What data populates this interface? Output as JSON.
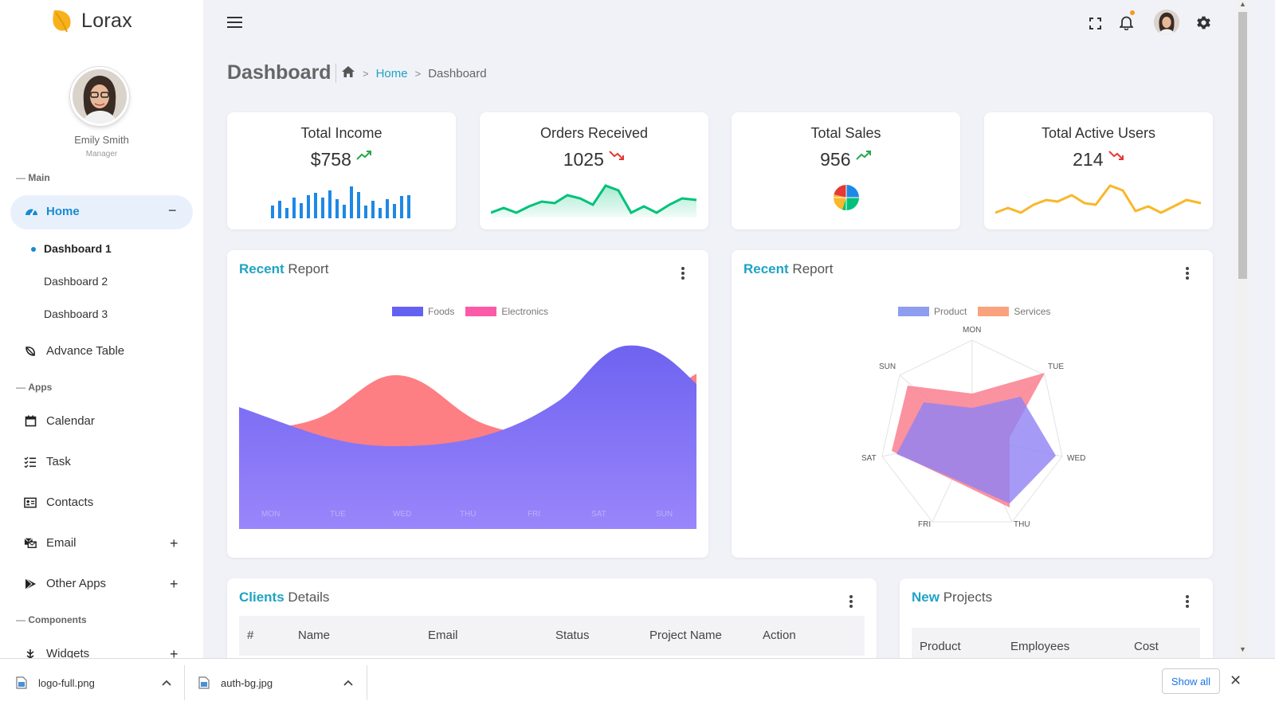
{
  "brand": {
    "name": "Lorax"
  },
  "profile": {
    "name": "Emily Smith",
    "role": "Manager"
  },
  "sidebar": {
    "sections": {
      "main": "Main",
      "apps": "Apps",
      "components": "Components"
    },
    "home": {
      "label": "Home",
      "toggle": "−"
    },
    "sub_items": [
      {
        "label": "Dashboard 1"
      },
      {
        "label": "Dashboard 2"
      },
      {
        "label": "Dashboard 3"
      }
    ],
    "items": [
      {
        "label": "Advance Table",
        "icon": "leaf-icon"
      },
      {
        "label": "Calendar",
        "icon": "calendar-icon"
      },
      {
        "label": "Task",
        "icon": "task-list-icon"
      },
      {
        "label": "Contacts",
        "icon": "contact-card-icon"
      },
      {
        "label": "Email",
        "icon": "email-icon",
        "expand": "+"
      },
      {
        "label": "Other Apps",
        "icon": "play-icon",
        "expand": "+"
      },
      {
        "label": "Widgets",
        "icon": "widget-icon",
        "expand": "+"
      }
    ]
  },
  "header": {
    "title": "Dashboard",
    "breadcrumb": [
      "Home",
      "Dashboard"
    ]
  },
  "stats": [
    {
      "title": "Total Income",
      "value": "$758",
      "trend": "up",
      "color": "#1e88e5",
      "chart": "bars"
    },
    {
      "title": "Orders Received",
      "value": "1025",
      "trend": "down",
      "color": "#00c27a",
      "chart": "area-line"
    },
    {
      "title": "Total Sales",
      "value": "956",
      "trend": "up",
      "chart": "pie"
    },
    {
      "title": "Total Active Users",
      "value": "214",
      "trend": "down",
      "color": "#f9b729",
      "chart": "line"
    }
  ],
  "report_left": {
    "title_accent": "Recent",
    "title_rest": " Report",
    "legend": [
      {
        "name": "Foods",
        "color": "#6461f2"
      },
      {
        "name": "Electronics",
        "color": "#fb5aa9"
      }
    ],
    "days": [
      "MON",
      "TUE",
      "WED",
      "THU",
      "FRI",
      "SAT",
      "SUN"
    ]
  },
  "report_right": {
    "title_accent": "Recent",
    "title_rest": " Report",
    "legend": [
      {
        "name": "Product",
        "color": "#8d9df0"
      },
      {
        "name": "Services",
        "color": "#f9a27c"
      }
    ],
    "axes": [
      "MON",
      "TUE",
      "WED",
      "THU",
      "FRI",
      "SAT",
      "SUN"
    ]
  },
  "clients": {
    "title_accent": "Clients",
    "title_rest": " Details",
    "columns": [
      "#",
      "Name",
      "Email",
      "Status",
      "Project Name",
      "Action"
    ]
  },
  "projects": {
    "title_accent": "New",
    "title_rest": " Projects",
    "columns": [
      "Product",
      "Employees",
      "Cost"
    ]
  },
  "downloads": {
    "items": [
      {
        "name": "logo-full.png"
      },
      {
        "name": "auth-bg.jpg"
      }
    ],
    "show_all": "Show all",
    "close": "✕"
  }
}
